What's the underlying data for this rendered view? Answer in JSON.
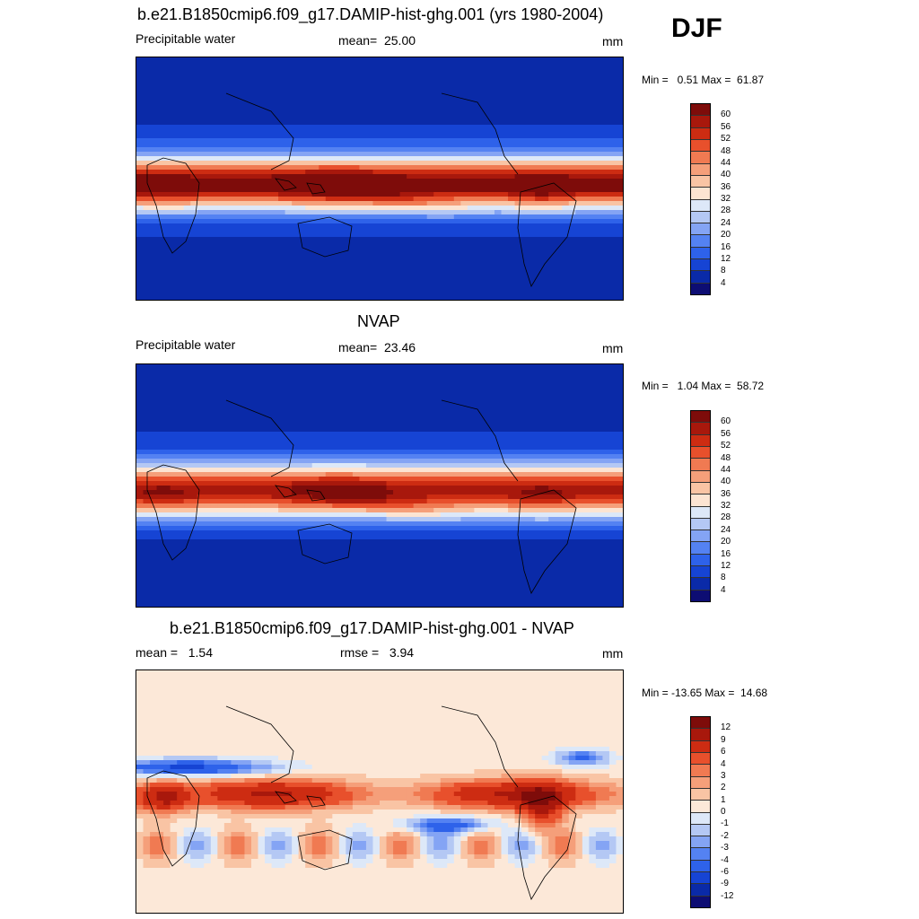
{
  "season": "DJF",
  "palette": {
    "pw": [
      "#0d0d73",
      "#0a2aa8",
      "#1644d4",
      "#2e62ea",
      "#5482f2",
      "#84a4f4",
      "#b4c8f4",
      "#dde8f8",
      "#fce4d2",
      "#f9c4a4",
      "#f59f7a",
      "#f07a52",
      "#e8502c",
      "#cd2c12",
      "#a8180c",
      "#7e0c0a"
    ],
    "diff": [
      "#0d0d73",
      "#0a2aa8",
      "#1644d4",
      "#2e62ea",
      "#5482f2",
      "#84a4f4",
      "#b4c8f4",
      "#dde8f8",
      "#fce8d8",
      "#f9c4a4",
      "#f59f7a",
      "#f07a52",
      "#e8502c",
      "#cd2c12",
      "#a8180c",
      "#7e0c0a"
    ]
  },
  "panels": [
    {
      "id": "model",
      "title": "b.e21.B1850cmip6.f09_g17.DAMIP-hist-ghg.001 (yrs 1980-2004)",
      "left_label": "Precipitable water",
      "center_label": "mean=  25.00",
      "units": "mm",
      "minmax": "Min =   0.51 Max =  61.87",
      "colorbar_labels": [
        "60",
        "56",
        "52",
        "48",
        "44",
        "40",
        "36",
        "32",
        "28",
        "24",
        "20",
        "16",
        "12",
        "8",
        "4"
      ],
      "field": "pw",
      "tropical_strength": 1.0
    },
    {
      "id": "obs",
      "title": "NVAP",
      "left_label": "Precipitable water",
      "center_label": "mean=  23.46",
      "units": "mm",
      "minmax": "Min =   1.04 Max =  58.72",
      "colorbar_labels": [
        "60",
        "56",
        "52",
        "48",
        "44",
        "40",
        "36",
        "32",
        "28",
        "24",
        "20",
        "16",
        "12",
        "8",
        "4"
      ],
      "field": "pw",
      "tropical_strength": 0.88
    },
    {
      "id": "diff",
      "title": "b.e21.B1850cmip6.f09_g17.DAMIP-hist-ghg.001 - NVAP",
      "left_label": "mean =   1.54",
      "center_label": "rmse =   3.94",
      "units": "mm",
      "minmax": "Min = -13.65 Max =  14.68",
      "colorbar_labels": [
        "12",
        "9",
        "6",
        "4",
        "3",
        "2",
        "1",
        "0",
        "-1",
        "-2",
        "-3",
        "-4",
        "-6",
        "-9",
        "-12"
      ],
      "field": "diff",
      "tropical_strength": 1.0
    }
  ]
}
